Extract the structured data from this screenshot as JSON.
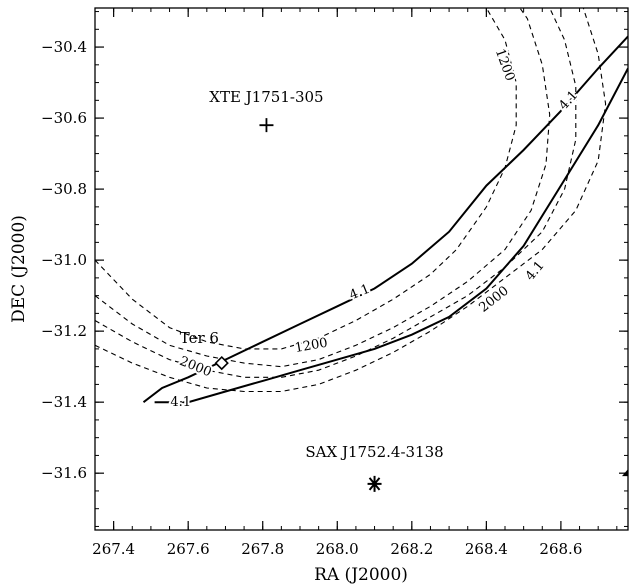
{
  "chart_data": {
    "type": "contour",
    "xlabel": "RA (J2000)",
    "ylabel": "DEC (J2000)",
    "xlim": [
      267.35,
      268.78
    ],
    "ylim": [
      -31.76,
      -30.29
    ],
    "xticks": [
      267.4,
      267.6,
      267.8,
      268.0,
      268.2,
      268.4,
      268.6
    ],
    "xtick_labels": [
      "267.4",
      "267.6",
      "267.8",
      "268.0",
      "268.2",
      "268.4",
      "268.6"
    ],
    "yticks": [
      -30.4,
      -30.6,
      -30.8,
      -31.0,
      -31.2,
      -31.4,
      -31.6
    ],
    "ytick_labels": [
      "-30.4",
      "-30.6",
      "-30.8",
      "-31.0",
      "-31.2",
      "-31.4",
      "-31.6"
    ],
    "sources": [
      {
        "name": "XTE J1751-305",
        "ra": 267.81,
        "dec": -30.62,
        "marker": "plus",
        "label_ra": 267.81,
        "label_dec": -30.54
      },
      {
        "name": "SAX J1752.4-3138",
        "ra": 268.1,
        "dec": -31.63,
        "marker": "asterisk",
        "label_ra": 268.1,
        "label_dec": -31.54
      },
      {
        "name": "Ter 6",
        "ra": 267.69,
        "dec": -31.29,
        "marker": "diamond",
        "label_ra": 267.63,
        "label_dec": -31.22
      }
    ],
    "error_box": [
      {
        "level": "4.1",
        "points": [
          [
            267.48,
            -31.4
          ],
          [
            267.53,
            -31.36
          ],
          [
            267.6,
            -31.33
          ],
          [
            267.7,
            -31.28
          ],
          [
            267.8,
            -31.23
          ],
          [
            267.9,
            -31.18
          ],
          [
            268.0,
            -31.13
          ],
          [
            268.1,
            -31.08
          ],
          [
            268.2,
            -31.01
          ],
          [
            268.3,
            -30.92
          ],
          [
            268.4,
            -30.79
          ],
          [
            268.5,
            -30.69
          ],
          [
            268.6,
            -30.58
          ],
          [
            268.7,
            -30.46
          ],
          [
            268.78,
            -30.37
          ]
        ]
      },
      {
        "level": "4.1",
        "points": [
          [
            267.51,
            -31.4
          ],
          [
            267.6,
            -31.4
          ],
          [
            267.7,
            -31.37
          ],
          [
            267.8,
            -31.34
          ],
          [
            267.9,
            -31.31
          ],
          [
            268.0,
            -31.28
          ],
          [
            268.1,
            -31.25
          ],
          [
            268.2,
            -31.21
          ],
          [
            268.3,
            -31.16
          ],
          [
            268.4,
            -31.08
          ],
          [
            268.5,
            -30.96
          ],
          [
            268.6,
            -30.79
          ],
          [
            268.7,
            -30.62
          ],
          [
            268.78,
            -30.46
          ]
        ]
      }
    ],
    "exposure_contours": [
      {
        "level": "1200",
        "points": [
          [
            267.35,
            -31.0
          ],
          [
            267.45,
            -31.11
          ],
          [
            267.55,
            -31.19
          ],
          [
            267.65,
            -31.23
          ],
          [
            267.75,
            -31.25
          ],
          [
            267.85,
            -31.25
          ],
          [
            267.95,
            -31.22
          ],
          [
            268.05,
            -31.17
          ],
          [
            268.15,
            -31.11
          ],
          [
            268.25,
            -31.04
          ],
          [
            268.32,
            -30.97
          ],
          [
            268.4,
            -30.85
          ],
          [
            268.45,
            -30.74
          ],
          [
            268.48,
            -30.62
          ],
          [
            268.48,
            -30.5
          ],
          [
            268.45,
            -30.38
          ],
          [
            268.4,
            -30.29
          ]
        ]
      },
      {
        "level": "",
        "points": [
          [
            267.35,
            -31.1
          ],
          [
            267.45,
            -31.18
          ],
          [
            267.55,
            -31.24
          ],
          [
            267.65,
            -31.27
          ],
          [
            267.75,
            -31.29
          ],
          [
            267.85,
            -31.3
          ],
          [
            267.95,
            -31.28
          ],
          [
            268.05,
            -31.24
          ],
          [
            268.15,
            -31.19
          ],
          [
            268.25,
            -31.13
          ],
          [
            268.35,
            -31.06
          ],
          [
            268.45,
            -30.97
          ],
          [
            268.52,
            -30.86
          ],
          [
            268.56,
            -30.73
          ],
          [
            268.57,
            -30.59
          ],
          [
            268.55,
            -30.45
          ],
          [
            268.51,
            -30.32
          ],
          [
            268.49,
            -30.29
          ]
        ]
      },
      {
        "level": "2000",
        "points": [
          [
            267.35,
            -31.17
          ],
          [
            267.45,
            -31.23
          ],
          [
            267.55,
            -31.28
          ],
          [
            267.65,
            -31.31
          ],
          [
            267.75,
            -31.33
          ],
          [
            267.85,
            -31.33
          ],
          [
            267.95,
            -31.31
          ],
          [
            268.05,
            -31.27
          ],
          [
            268.15,
            -31.22
          ],
          [
            268.25,
            -31.16
          ],
          [
            268.35,
            -31.1
          ],
          [
            268.45,
            -31.02
          ],
          [
            268.55,
            -30.92
          ],
          [
            268.61,
            -30.8
          ],
          [
            268.64,
            -30.66
          ],
          [
            268.64,
            -30.51
          ],
          [
            268.61,
            -30.38
          ],
          [
            268.57,
            -30.29
          ]
        ]
      },
      {
        "level": "",
        "points": [
          [
            267.35,
            -31.24
          ],
          [
            267.45,
            -31.29
          ],
          [
            267.55,
            -31.33
          ],
          [
            267.65,
            -31.36
          ],
          [
            267.75,
            -31.37
          ],
          [
            267.85,
            -31.37
          ],
          [
            267.95,
            -31.35
          ],
          [
            268.05,
            -31.31
          ],
          [
            268.15,
            -31.26
          ],
          [
            268.25,
            -31.2
          ],
          [
            268.35,
            -31.13
          ],
          [
            268.45,
            -31.05
          ],
          [
            268.55,
            -30.97
          ],
          [
            268.64,
            -30.86
          ],
          [
            268.7,
            -30.72
          ],
          [
            268.72,
            -30.56
          ],
          [
            268.7,
            -30.42
          ],
          [
            268.66,
            -30.29
          ]
        ]
      }
    ],
    "contour_labels": [
      {
        "text": "4.1",
        "ra": 267.58,
        "dec": -31.4,
        "angle": 0
      },
      {
        "text": "4.1",
        "ra": 268.06,
        "dec": -31.09,
        "angle": -22
      },
      {
        "text": "4.1",
        "ra": 268.62,
        "dec": -30.55,
        "angle": -48
      },
      {
        "text": "4.1",
        "ra": 268.53,
        "dec": -31.03,
        "angle": -50
      },
      {
        "text": "1200",
        "ra": 267.93,
        "dec": -31.24,
        "angle": -10
      },
      {
        "text": "1200",
        "ra": 268.45,
        "dec": -30.45,
        "angle": 70
      },
      {
        "text": "2000",
        "ra": 267.62,
        "dec": -31.3,
        "angle": 22
      },
      {
        "text": "2000",
        "ra": 268.42,
        "dec": -31.11,
        "angle": -38
      }
    ]
  }
}
